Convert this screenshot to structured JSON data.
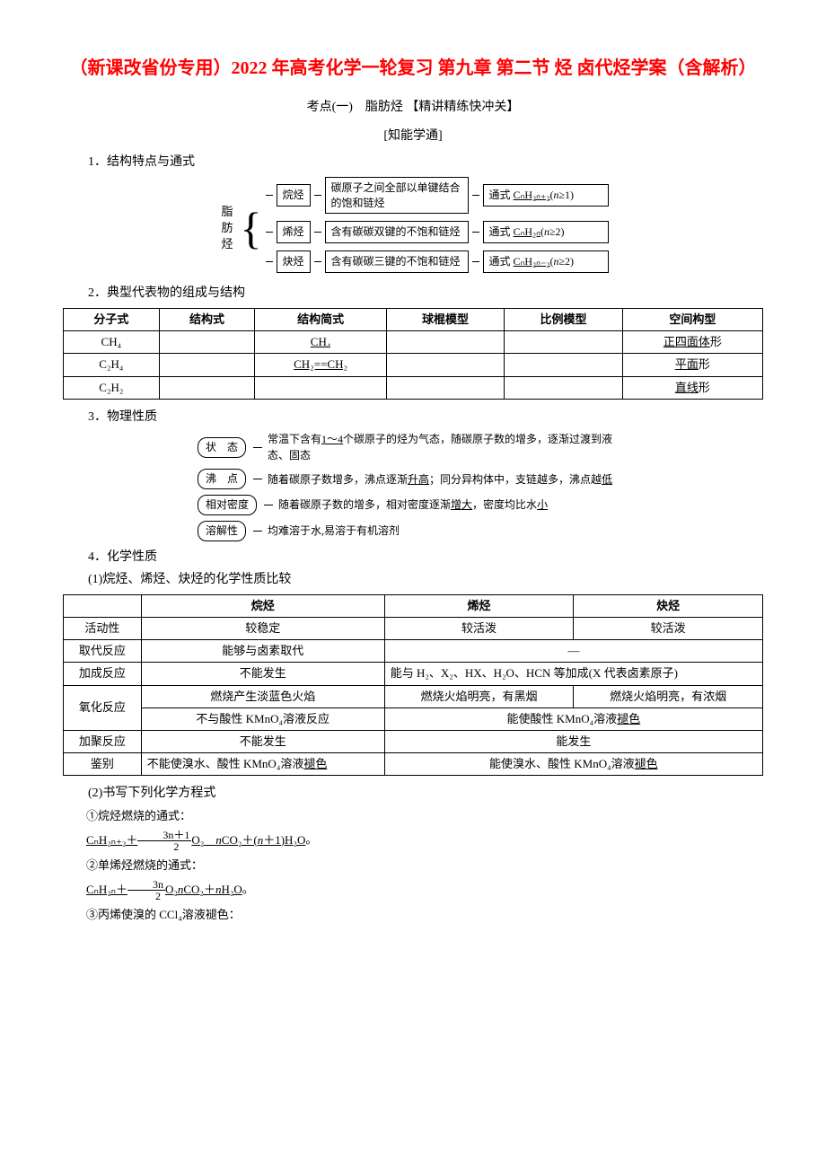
{
  "title": "（新课改省份专用）2022 年高考化学一轮复习 第九章 第二节 烃 卤代烃学案（含解析）",
  "subtitle": "考点(一)　脂肪烃 【精讲精练快冲关】",
  "subheading": "[知能学通]",
  "sec1": "1．结构特点与通式",
  "hyd_label": "脂肪烃",
  "rows": [
    {
      "name": "烷烃",
      "desc": "碳原子之间全部以单键结合的饱和链烃",
      "formula": "通式 CₙH₂ₙ₊₂(n≥1)"
    },
    {
      "name": "烯烃",
      "desc": "含有碳碳双键的不饱和链烃",
      "formula": "通式 CₙH₂ₙ(n≥2)"
    },
    {
      "name": "炔烃",
      "desc": "含有碳碳三键的不饱和链烃",
      "formula": "通式 CₙH₂ₙ₋₂(n≥2)"
    }
  ],
  "sec2": "2．典型代表物的组成与结构",
  "table1": {
    "headers": [
      "分子式",
      "结构式",
      "结构简式",
      "球棍模型",
      "比例模型",
      "空间构型"
    ],
    "r": [
      [
        "CH₄",
        "",
        "CH₄",
        "",
        "",
        "正四面体形"
      ],
      [
        "C₂H₄",
        "",
        "CH₂==CH₂",
        "",
        "",
        "平面形"
      ],
      [
        "C₂H₂",
        "",
        "",
        "",
        "",
        "直线形"
      ]
    ],
    "underline_cols": [
      2,
      5
    ],
    "underline_chars": {
      "正四面体形": "正四面体",
      "平面形": "平面",
      "直线形": "直线"
    }
  },
  "sec3": "3．物理性质",
  "props": [
    {
      "label": "状　态",
      "desc_parts": [
        {
          "t": "常温下含有"
        },
        {
          "t": "1～4",
          "u": true
        },
        {
          "t": "个碳原子的烃为气态，随碳原子数的增多，逐渐过渡到液态、固态"
        }
      ]
    },
    {
      "label": "沸　点",
      "desc_parts": [
        {
          "t": "随着碳原子数增多，沸点逐渐"
        },
        {
          "t": "升高",
          "u": true
        },
        {
          "t": "；同分异构体中，支链越多，沸点越"
        },
        {
          "t": "低",
          "u": true
        }
      ]
    },
    {
      "label": "相对密度",
      "desc_parts": [
        {
          "t": "随着碳原子数的增多，相对密度逐渐"
        },
        {
          "t": "增大",
          "u": true
        },
        {
          "t": "，密度均比水"
        },
        {
          "t": "小",
          "u": true
        }
      ]
    },
    {
      "label": "溶解性",
      "desc_parts": [
        {
          "t": "均难溶于水,易溶于有机溶剂"
        }
      ]
    }
  ],
  "sec4": "4．化学性质",
  "sec4_1": "(1)烷烃、烯烃、炔烃的化学性质比较",
  "table2": {
    "head": [
      "",
      "烷烃",
      "烯烃",
      "炔烃"
    ],
    "r1": [
      "活动性",
      "较稳定",
      "较活泼",
      "较活泼"
    ],
    "r2": [
      "取代反应",
      "能够与卤素取代",
      "—"
    ],
    "r3": [
      "加成反应",
      "不能发生",
      "能与 H₂、X₂、HX、H₂O、HCN 等加成(X 代表卤素原子)"
    ],
    "r4a": [
      "氧化反应",
      "燃烧产生淡蓝色火焰",
      "燃烧火焰明亮，有黑烟",
      "燃烧火焰明亮，有浓烟"
    ],
    "r4b": [
      "不与酸性 KMnO₄溶液反应",
      "能使酸性 KMnO₄溶液褪色"
    ],
    "r5": [
      "加聚反应",
      "不能发生",
      "能发生"
    ],
    "r6": [
      "鉴别",
      "不能使溴水、酸性 KMnO₄溶液褪色",
      "能使溴水、酸性 KMnO₄溶液褪色"
    ]
  },
  "sec4_2": "(2)书写下列化学方程式",
  "eq1_label": "①烷烃燃烧的通式：",
  "eq1": "CₙH₂ₙ₊₂＋",
  "eq1_frac_num": "3n＋1",
  "eq1_frac_den": "2",
  "eq1_tail": "O₂　nCO₂＋(n＋1)H₂O",
  "eq2_label": "②单烯烃燃烧的通式：",
  "eq2": "CₙH₂ₙ＋",
  "eq2_frac_num": "3n",
  "eq2_frac_den": "2",
  "eq2_tail": "O₂nCO₂＋nH₂O",
  "eq3_label": "③丙烯使溴的 CCl₄溶液褪色："
}
